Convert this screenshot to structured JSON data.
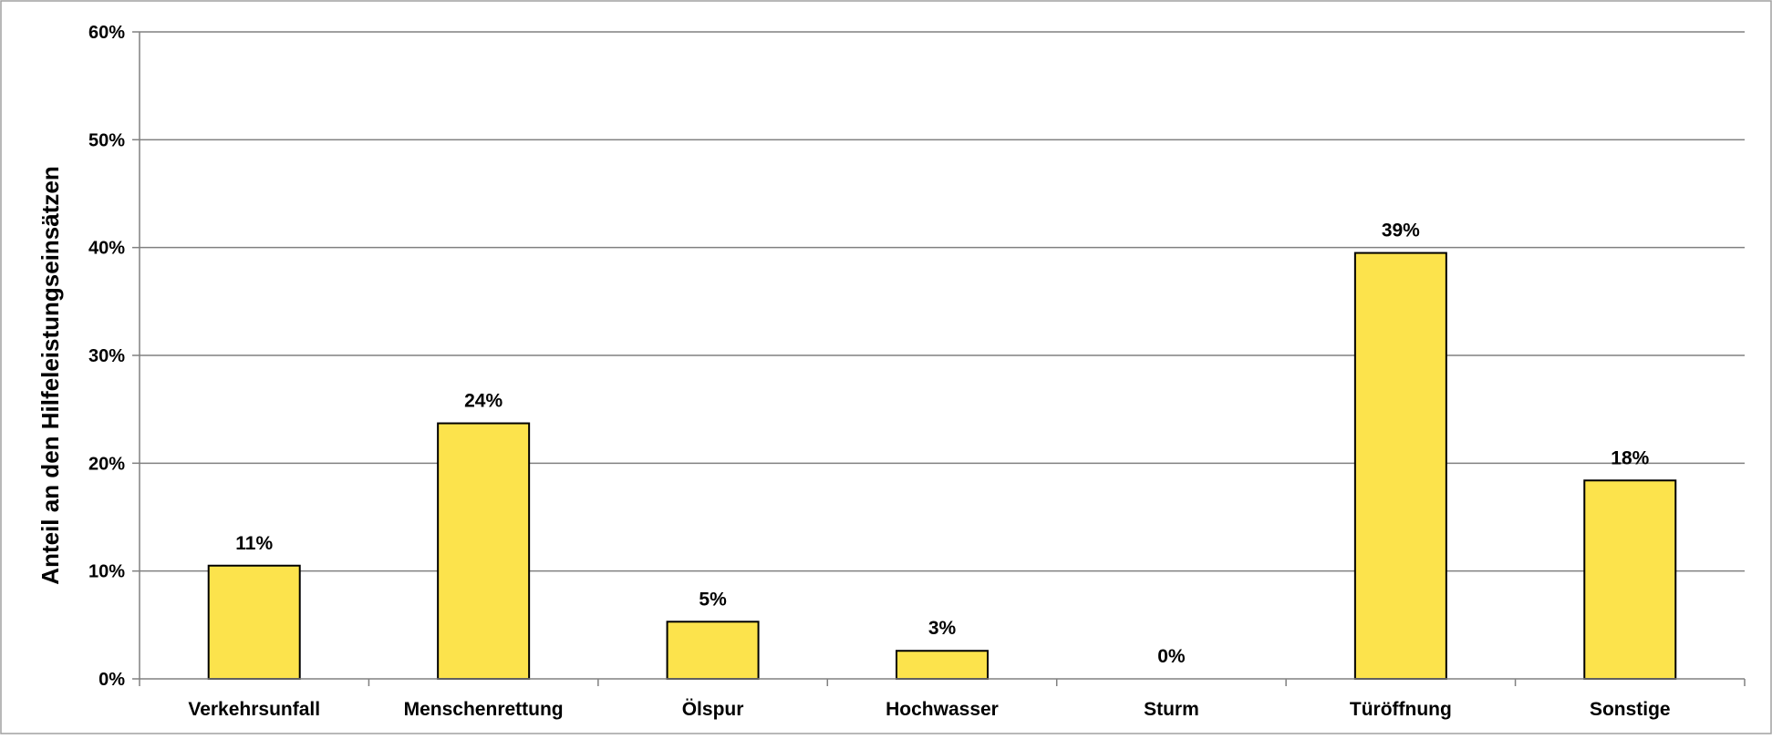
{
  "chart_data": {
    "type": "bar",
    "title": "",
    "xlabel": "",
    "ylabel": "Anteil an den Hilfeleistungseinsätzen",
    "categories": [
      "Verkehrsunfall",
      "Menschenrettung",
      "Ölspur",
      "Hochwasser",
      "Sturm",
      "Türöffnung",
      "Sonstige"
    ],
    "values": [
      0.105,
      0.237,
      0.053,
      0.026,
      0.0,
      0.395,
      0.184
    ],
    "data_labels": [
      "11%",
      "24%",
      "5%",
      "3%",
      "0%",
      "39%",
      "18%"
    ],
    "y_ticks": [
      0,
      0.1,
      0.2,
      0.3,
      0.4,
      0.5,
      0.6
    ],
    "y_tick_labels": [
      "0%",
      "10%",
      "20%",
      "30%",
      "40%",
      "50%",
      "60%"
    ],
    "ylim": [
      0,
      0.6
    ],
    "grid": true,
    "legend": "none",
    "bar_color": "#FCE34C",
    "bar_edge_color": "#000000",
    "gridline_color": "#808080"
  }
}
